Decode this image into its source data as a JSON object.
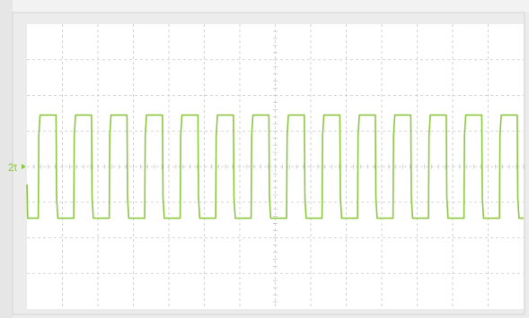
{
  "chart_data": {
    "type": "line",
    "channel_marker": "2t",
    "grid": true,
    "xlim": [
      0,
      14
    ],
    "ylim": [
      -4,
      4
    ],
    "x_divisions": 14,
    "y_divisions": 8,
    "series": [
      {
        "color": "#8dc63f",
        "waveform": "square",
        "period": 1.0,
        "high": 1.45,
        "low": -1.45,
        "start_x": 0.0,
        "start_y": -0.5,
        "phase_offset": 0.32
      }
    ]
  },
  "colors": {
    "screen_background": "#ffffff",
    "outer_background": "#ececec",
    "grid": "#c8c8c8",
    "trace": "#8dc63f",
    "marker": "#8dc63f"
  }
}
